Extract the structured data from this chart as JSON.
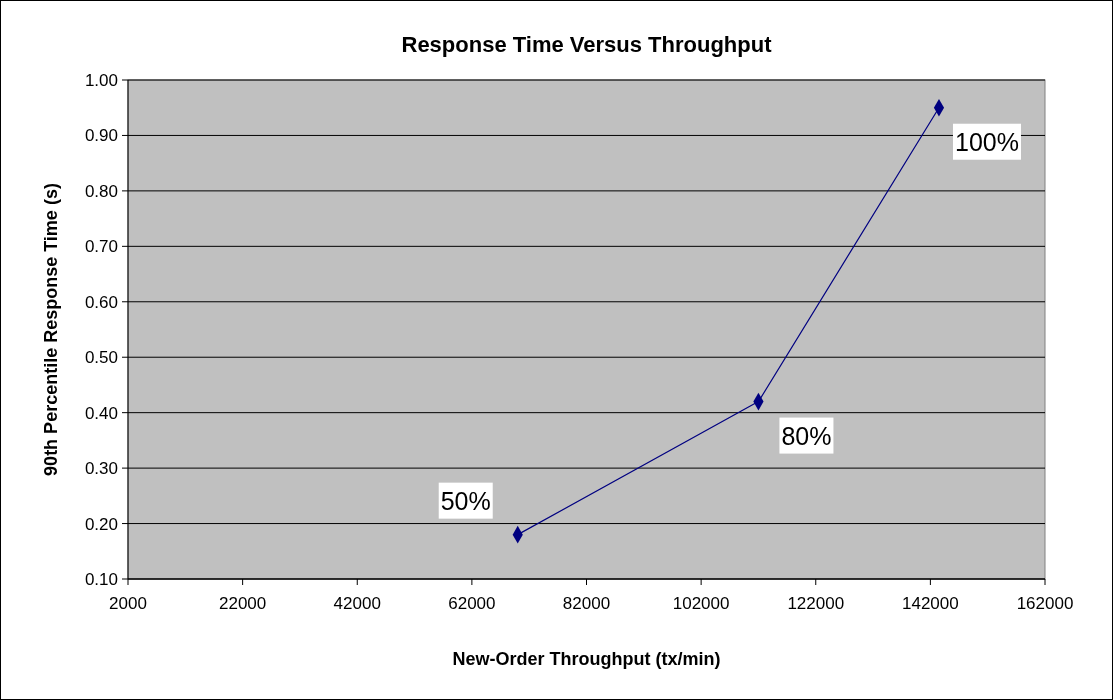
{
  "chart_data": {
    "type": "line",
    "title": "Response Time Versus Throughput",
    "xlabel": "New-Order Throughput (tx/min)",
    "ylabel": "90th Percentile Response Time (s)",
    "x": [
      70000,
      112000,
      143500
    ],
    "series": [
      {
        "color": "#000080",
        "values": [
          0.18,
          0.42,
          0.95
        ]
      }
    ],
    "xlim": [
      2000,
      162000
    ],
    "xticks": [
      2000,
      22000,
      42000,
      62000,
      82000,
      102000,
      122000,
      142000,
      162000
    ],
    "ylim": [
      0.1,
      1.0
    ],
    "yticks": [
      {
        "value": 0.1,
        "label": "0.10"
      },
      {
        "value": 0.2,
        "label": "0.20"
      },
      {
        "value": 0.3,
        "label": "0.30"
      },
      {
        "value": 0.4,
        "label": "0.40"
      },
      {
        "value": 0.5,
        "label": "0.50"
      },
      {
        "value": 0.6,
        "label": "0.60"
      },
      {
        "value": 0.7,
        "label": "0.70"
      },
      {
        "value": 0.8,
        "label": "0.80"
      },
      {
        "value": 0.9,
        "label": "0.90"
      },
      {
        "value": 1.0,
        "label": "1.00"
      }
    ],
    "grid": "y",
    "marker": "diamond",
    "line_style": "solid",
    "annotations": [
      {
        "text": "50%",
        "x": 70000,
        "y": 0.18
      },
      {
        "text": "80%",
        "x": 112000,
        "y": 0.42
      },
      {
        "text": "100%",
        "x": 143500,
        "y": 0.95
      }
    ]
  }
}
